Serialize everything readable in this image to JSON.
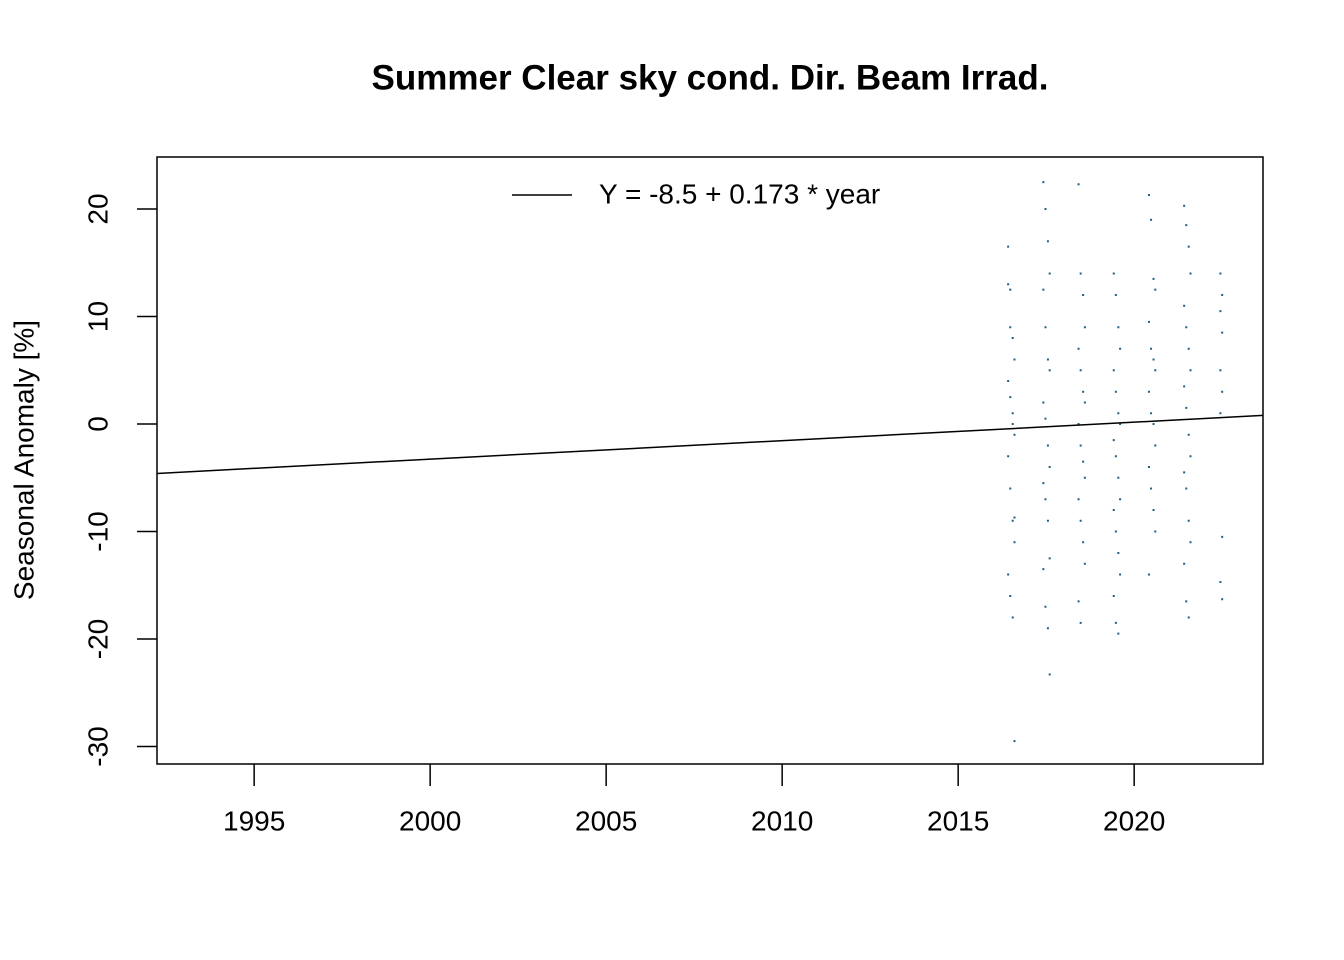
{
  "chart_data": {
    "type": "scatter",
    "title": "Summer Clear sky cond. Dir. Beam Irrad.",
    "y_label": "Seasonal Anomaly [%]",
    "xlim": [
      1992.24,
      2023.66
    ],
    "ylim": [
      -31.63,
      24.84
    ],
    "xticks": [
      1995,
      2000,
      2005,
      2010,
      2015,
      2020
    ],
    "yticks": [
      -30,
      -20,
      -10,
      0,
      10,
      20
    ],
    "series": [
      {
        "color": "#1f5f80",
        "x": [
          2016.42,
          2016.48,
          2016.55,
          2016.6,
          2016.42,
          2016.48,
          2016.55,
          2016.6,
          2016.42,
          2016.48,
          2016.55,
          2016.6,
          2016.42,
          2016.48,
          2016.55,
          2016.6,
          2016.42,
          2016.48,
          2016.55,
          2016.6,
          2017.42,
          2017.48,
          2017.55,
          2017.6,
          2017.42,
          2017.48,
          2017.55,
          2017.6,
          2017.42,
          2017.48,
          2017.55,
          2017.6,
          2017.42,
          2017.48,
          2017.55,
          2017.6,
          2017.42,
          2017.48,
          2017.55,
          2017.6,
          2018.42,
          2018.48,
          2018.55,
          2018.6,
          2018.42,
          2018.48,
          2018.55,
          2018.6,
          2018.42,
          2018.48,
          2018.55,
          2018.6,
          2018.42,
          2018.48,
          2018.55,
          2018.6,
          2018.42,
          2018.48,
          2019.42,
          2019.48,
          2019.55,
          2019.6,
          2019.42,
          2019.48,
          2019.55,
          2019.6,
          2019.42,
          2019.48,
          2019.55,
          2019.6,
          2019.42,
          2019.48,
          2019.55,
          2019.6,
          2019.42,
          2019.48,
          2019.55,
          2020.42,
          2020.48,
          2020.55,
          2020.6,
          2020.42,
          2020.48,
          2020.55,
          2020.6,
          2020.42,
          2020.48,
          2020.55,
          2020.6,
          2020.42,
          2020.48,
          2020.55,
          2020.6,
          2020.42,
          2021.42,
          2021.48,
          2021.55,
          2021.6,
          2021.42,
          2021.48,
          2021.55,
          2021.6,
          2021.42,
          2021.48,
          2021.55,
          2021.6,
          2021.42,
          2021.48,
          2021.55,
          2021.6,
          2021.42,
          2021.48,
          2021.55,
          2022.45,
          2022.5,
          2022.45,
          2022.5,
          2022.45,
          2022.5,
          2022.45,
          2022.5,
          2022.45,
          2022.5
        ],
        "y": [
          13,
          9,
          8,
          6,
          4,
          2.5,
          1,
          -1,
          -3,
          -6,
          -9,
          -11,
          -14,
          -16,
          -18,
          -29.5,
          16.5,
          12.5,
          0,
          -8.7,
          22.5,
          20,
          17,
          14,
          12.5,
          9,
          6,
          5,
          2,
          0.5,
          -2,
          -4,
          -5.5,
          -7,
          -9,
          -12.5,
          -13.5,
          -17,
          -19,
          -23.3,
          22.3,
          14,
          12,
          9,
          7,
          5,
          3,
          2,
          0,
          -2,
          -3.5,
          -5,
          -7,
          -9,
          -11,
          -13,
          -16.5,
          -18.5,
          14,
          12,
          9,
          7,
          5,
          3,
          1,
          0,
          -1.5,
          -3,
          -5,
          -7,
          -8,
          -10,
          -12,
          -14,
          -16,
          -18.5,
          -19.5,
          21.3,
          19,
          13.5,
          12.5,
          9.5,
          7,
          6,
          5,
          3,
          1,
          0,
          -2,
          -4,
          -6,
          -8,
          -10,
          -14,
          20.3,
          18.5,
          16.5,
          14,
          11,
          9,
          7,
          5,
          3.5,
          1.5,
          -1,
          -3,
          -4.5,
          -6,
          -9,
          -11,
          -13,
          -16.5,
          -18,
          14,
          12,
          10.5,
          8.5,
          5,
          3,
          1,
          -10.5,
          -14.7,
          -16.3
        ]
      }
    ],
    "trend": {
      "label": "Y = -8.5 + 0.173 * year",
      "color": "#000000",
      "x": [
        1992.24,
        2023.66
      ],
      "y": [
        -4.6,
        0.8
      ]
    }
  }
}
